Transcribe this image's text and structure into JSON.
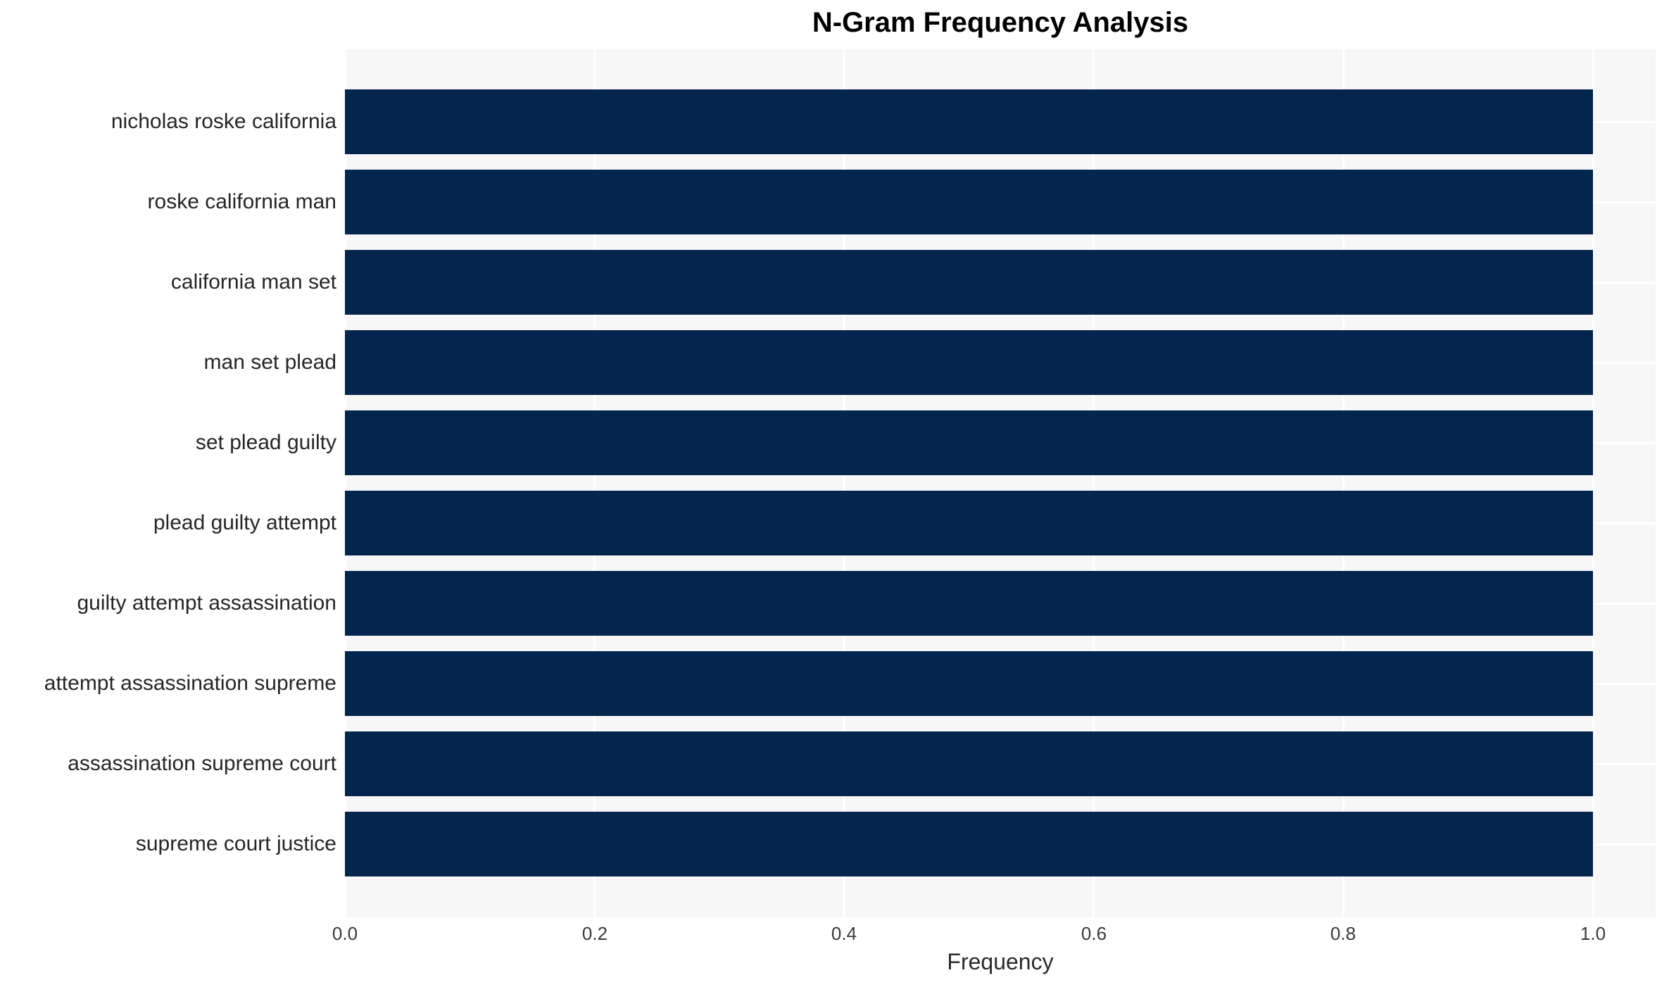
{
  "chart_data": {
    "type": "bar",
    "orientation": "horizontal",
    "title": "N-Gram Frequency Analysis",
    "xlabel": "Frequency",
    "ylabel": "",
    "categories": [
      "nicholas roske california",
      "roske california man",
      "california man set",
      "man set plead",
      "set plead guilty",
      "plead guilty attempt",
      "guilty attempt assassination",
      "attempt assassination supreme",
      "assassination supreme court",
      "supreme court justice"
    ],
    "values": [
      1.0,
      1.0,
      1.0,
      1.0,
      1.0,
      1.0,
      1.0,
      1.0,
      1.0,
      1.0
    ],
    "x_ticks": [
      "0.0",
      "0.2",
      "0.4",
      "0.6",
      "0.8",
      "1.0"
    ],
    "xlim": [
      0,
      1.05
    ],
    "grid": true,
    "legend": false,
    "colors": {
      "bar": "#04254d",
      "plot_background": "#f7f7f8",
      "page_background": "#ffffff",
      "gridline": "#ffffff",
      "title_text": "#000000",
      "label_text": "#262626",
      "tick_text": "#3a3a3a"
    }
  }
}
